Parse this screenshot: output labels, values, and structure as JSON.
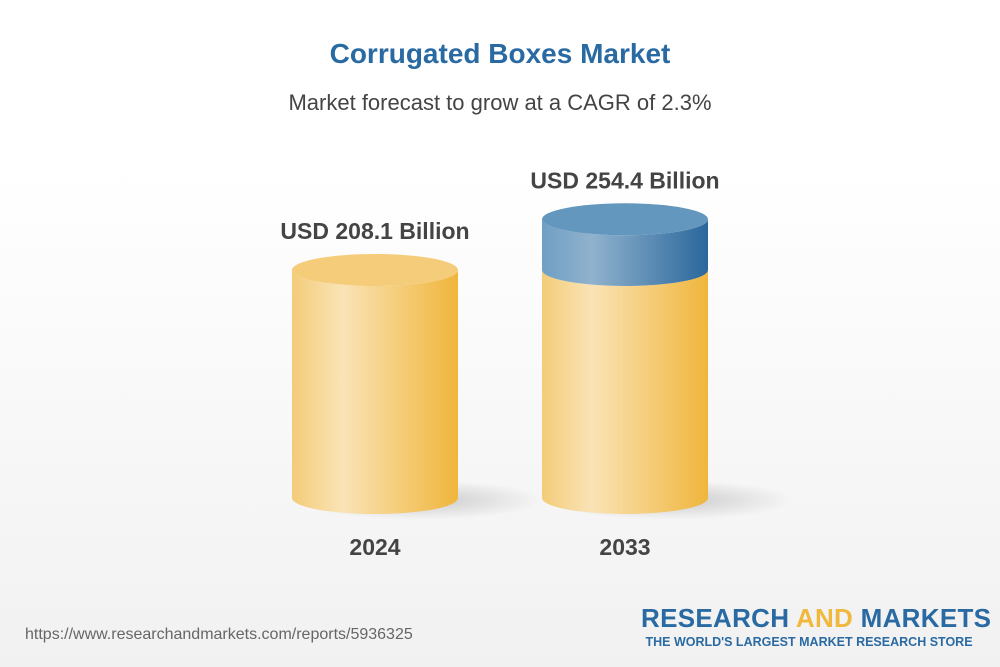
{
  "chart_data": {
    "type": "bar",
    "style": "3d-cylinder",
    "title": "Corrugated Boxes Market",
    "subtitle": "Market forecast to grow at a CAGR of 2.3%",
    "categories": [
      "2024",
      "2033"
    ],
    "values": [
      208.1,
      254.4
    ],
    "data_labels": [
      "USD 208.1 Billion",
      "USD 254.4 Billion"
    ],
    "unit": "USD Billion",
    "grid": false,
    "colors": {
      "base": "#f0b93e",
      "growth": "#2a6aa3",
      "title": "#2a6aa3"
    }
  },
  "footer": {
    "url": "https://www.researchandmarkets.com/reports/5936325",
    "logo": {
      "word1": "RESEARCH",
      "word2": "AND",
      "word3": "MARKETS",
      "tagline": "THE WORLD'S LARGEST MARKET RESEARCH STORE"
    }
  }
}
